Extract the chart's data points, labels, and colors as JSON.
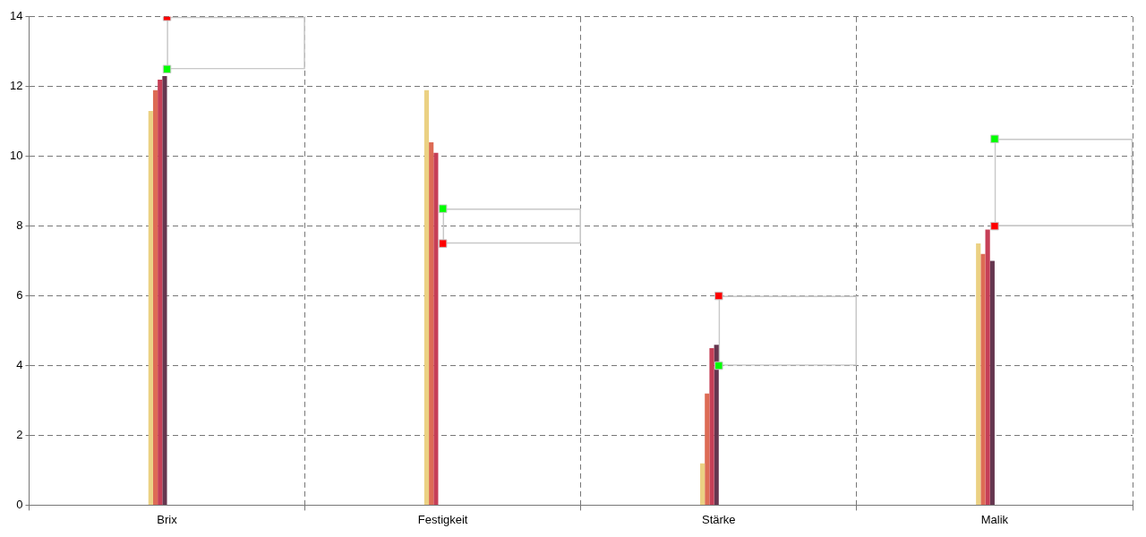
{
  "chart_data": {
    "type": "bar",
    "categories": [
      "Brix",
      "Festigkeit",
      "Stärke",
      "Malik"
    ],
    "series": [
      {
        "color": "#ebd183",
        "values": [
          11.3,
          11.9,
          1.2,
          7.5
        ]
      },
      {
        "color": "#dd6b55",
        "values": [
          11.9,
          10.4,
          3.2,
          7.2
        ]
      },
      {
        "color": "#c63f57",
        "values": [
          12.2,
          10.1,
          4.5,
          7.9
        ]
      },
      {
        "color": "#65364f",
        "values": [
          12.3,
          0,
          4.6,
          7.0
        ]
      },
      {
        "type": "bar",
        "color": "#c8c8c8",
        "base": [
          12.5,
          7.5,
          4,
          8
        ],
        "values": [
          1.5,
          1,
          2,
          2.5
        ]
      },
      {
        "type": "scatter",
        "color": "#00ff00",
        "x": [
          "Brix",
          "Festigkeit",
          "Stärke",
          "Malik"
        ],
        "values": [
          12.5,
          8.5,
          4,
          10.5
        ]
      },
      {
        "type": "scatter",
        "color": "#ff0000",
        "x": [
          "Brix",
          "Festigkeit",
          "Stärke",
          "Malik"
        ],
        "values": [
          14,
          7.5,
          6,
          8
        ]
      }
    ],
    "ylim": [
      0,
      14
    ],
    "yticks": [
      0,
      2,
      4,
      6,
      8,
      10,
      12,
      14
    ],
    "grid": true,
    "marker": "square",
    "legend": false
  }
}
